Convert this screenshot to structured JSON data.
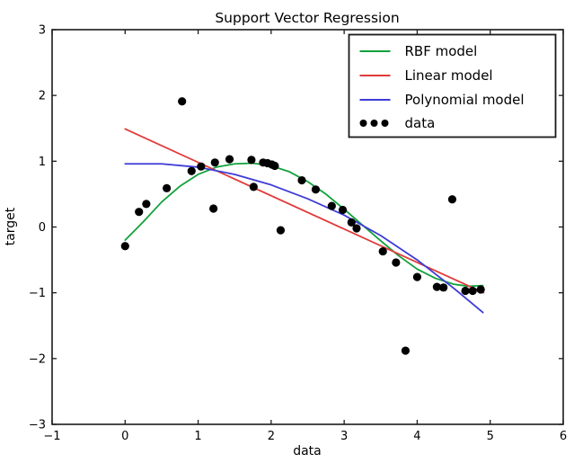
{
  "figure": {
    "background": "#ffffff",
    "frame_color": "#1a1a1a"
  },
  "chart_data": {
    "type": "line",
    "title": "Support Vector Regression",
    "xlabel": "data",
    "ylabel": "target",
    "xlim": [
      -1,
      6
    ],
    "ylim": [
      -3,
      3
    ],
    "xticks": [
      -1,
      0,
      1,
      2,
      3,
      4,
      5,
      6
    ],
    "yticks": [
      3,
      2,
      1,
      0,
      -1,
      -2,
      -3
    ],
    "grid": false,
    "legend_position": "upper right",
    "series": [
      {
        "name": "RBF model",
        "type": "line",
        "color": "#12a13b",
        "points": [
          [
            0,
            -0.2
          ],
          [
            0.25,
            0.08
          ],
          [
            0.5,
            0.38
          ],
          [
            0.75,
            0.62
          ],
          [
            1.0,
            0.8
          ],
          [
            1.25,
            0.91
          ],
          [
            1.5,
            0.96
          ],
          [
            1.75,
            0.97
          ],
          [
            2.0,
            0.93
          ],
          [
            2.25,
            0.84
          ],
          [
            2.5,
            0.69
          ],
          [
            2.75,
            0.5
          ],
          [
            3.0,
            0.27
          ],
          [
            3.25,
            0.03
          ],
          [
            3.5,
            -0.21
          ],
          [
            3.75,
            -0.44
          ],
          [
            4.0,
            -0.64
          ],
          [
            4.25,
            -0.78
          ],
          [
            4.5,
            -0.87
          ],
          [
            4.7,
            -0.9
          ],
          [
            4.9,
            -0.89
          ]
        ]
      },
      {
        "name": "Linear model",
        "type": "line",
        "color": "#e23a3a",
        "points": [
          [
            0,
            1.49
          ],
          [
            4.91,
            -1.0
          ]
        ]
      },
      {
        "name": "Polynomial model",
        "type": "line",
        "color": "#3d3bd8",
        "points": [
          [
            0,
            0.96
          ],
          [
            0.5,
            0.96
          ],
          [
            1.0,
            0.91
          ],
          [
            1.5,
            0.8
          ],
          [
            2.0,
            0.64
          ],
          [
            2.5,
            0.43
          ],
          [
            3.0,
            0.18
          ],
          [
            3.5,
            -0.13
          ],
          [
            4.0,
            -0.5
          ],
          [
            4.5,
            -0.93
          ],
          [
            4.9,
            -1.3
          ]
        ]
      },
      {
        "name": "data",
        "type": "scatter",
        "color": "#000000",
        "points": [
          [
            0.0,
            -0.29
          ],
          [
            0.19,
            0.23
          ],
          [
            0.29,
            0.35
          ],
          [
            0.57,
            0.59
          ],
          [
            0.78,
            1.91
          ],
          [
            0.91,
            0.85
          ],
          [
            1.04,
            0.92
          ],
          [
            1.21,
            0.28
          ],
          [
            1.23,
            0.98
          ],
          [
            1.43,
            1.03
          ],
          [
            1.73,
            1.02
          ],
          [
            1.76,
            0.61
          ],
          [
            1.89,
            0.98
          ],
          [
            1.95,
            0.97
          ],
          [
            2.01,
            0.95
          ],
          [
            2.05,
            0.93
          ],
          [
            2.13,
            -0.05
          ],
          [
            2.42,
            0.71
          ],
          [
            2.61,
            0.57
          ],
          [
            2.83,
            0.32
          ],
          [
            2.98,
            0.26
          ],
          [
            3.1,
            0.07
          ],
          [
            3.17,
            -0.02
          ],
          [
            3.53,
            -0.37
          ],
          [
            3.71,
            -0.54
          ],
          [
            3.84,
            -1.88
          ],
          [
            4.0,
            -0.76
          ],
          [
            4.27,
            -0.91
          ],
          [
            4.36,
            -0.92
          ],
          [
            4.48,
            0.42
          ],
          [
            4.66,
            -0.97
          ],
          [
            4.76,
            -0.97
          ],
          [
            4.87,
            -0.95
          ]
        ]
      }
    ]
  }
}
